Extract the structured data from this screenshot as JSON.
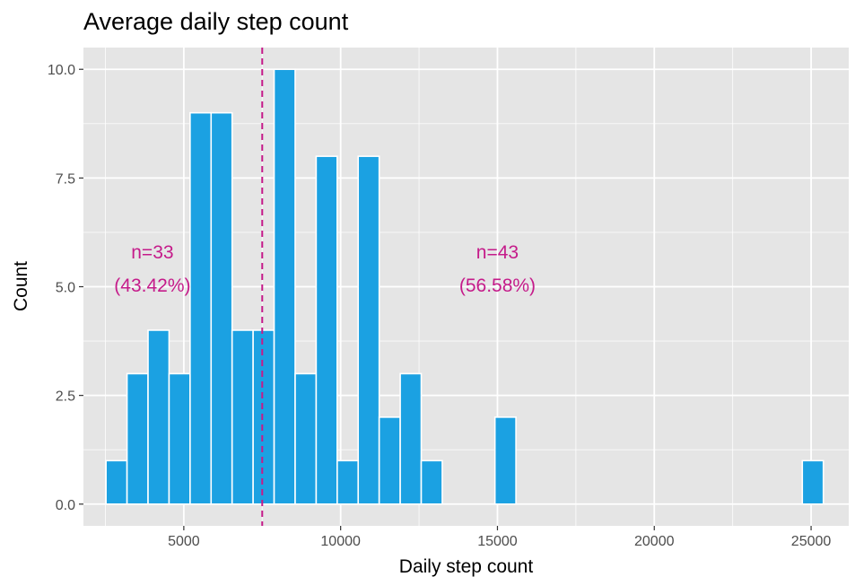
{
  "chart_data": {
    "type": "bar",
    "title": "Average daily step count",
    "xlabel": "Daily step count",
    "ylabel": "Count",
    "xlim": [
      1800,
      26200
    ],
    "ylim": [
      -0.5,
      10.5
    ],
    "x_ticks": [
      5000,
      10000,
      15000,
      20000,
      25000
    ],
    "x_tick_labels": [
      "5000",
      "10000",
      "15000",
      "20000",
      "25000"
    ],
    "y_ticks": [
      0,
      2.5,
      5,
      7.5,
      10
    ],
    "y_tick_labels": [
      "0.0",
      "2.5",
      "5.0",
      "7.5",
      "10.0"
    ],
    "bin_width": 670,
    "bins": [
      {
        "x0": 2520,
        "x1": 3190,
        "count": 1
      },
      {
        "x0": 3190,
        "x1": 3860,
        "count": 3
      },
      {
        "x0": 3860,
        "x1": 4530,
        "count": 4
      },
      {
        "x0": 4530,
        "x1": 5200,
        "count": 3
      },
      {
        "x0": 5200,
        "x1": 5870,
        "count": 9
      },
      {
        "x0": 5870,
        "x1": 6540,
        "count": 9
      },
      {
        "x0": 6540,
        "x1": 7210,
        "count": 4
      },
      {
        "x0": 7210,
        "x1": 7880,
        "count": 4
      },
      {
        "x0": 7880,
        "x1": 8550,
        "count": 10
      },
      {
        "x0": 8550,
        "x1": 9220,
        "count": 3
      },
      {
        "x0": 9220,
        "x1": 9890,
        "count": 8
      },
      {
        "x0": 9890,
        "x1": 10560,
        "count": 1
      },
      {
        "x0": 10560,
        "x1": 11230,
        "count": 8
      },
      {
        "x0": 11230,
        "x1": 11900,
        "count": 2
      },
      {
        "x0": 11900,
        "x1": 12570,
        "count": 3
      },
      {
        "x0": 12570,
        "x1": 13240,
        "count": 1
      },
      {
        "x0": 14920,
        "x1": 15590,
        "count": 2
      },
      {
        "x0": 24720,
        "x1": 25390,
        "count": 1
      }
    ],
    "reference_line": {
      "x": 7500,
      "style": "dashed",
      "color": "#c51b8a"
    },
    "annotations": [
      {
        "line1": "n=33",
        "line2": "(43.42%)",
        "x": 4000,
        "y": 5.65
      },
      {
        "line1": "n=43",
        "line2": "(56.58%)",
        "x": 15000,
        "y": 5.65
      }
    ],
    "colors": {
      "bar_fill": "#1ba1e2",
      "bar_stroke": "#ffffff",
      "panel_bg": "#e5e5e5",
      "grid": "#ffffff",
      "annotation": "#c51b8a"
    },
    "grid": true,
    "legend": "none"
  }
}
